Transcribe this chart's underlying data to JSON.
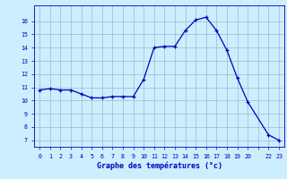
{
  "hours": [
    0,
    1,
    2,
    3,
    4,
    5,
    6,
    7,
    8,
    9,
    10,
    11,
    12,
    13,
    14,
    15,
    16,
    17,
    18,
    19,
    20,
    22,
    23
  ],
  "temps": [
    10.8,
    10.9,
    10.8,
    10.8,
    10.5,
    10.2,
    10.2,
    10.3,
    10.3,
    10.3,
    11.6,
    14.0,
    14.1,
    14.1,
    15.3,
    16.1,
    16.3,
    15.3,
    13.8,
    11.7,
    9.9,
    7.4,
    7.0
  ],
  "xlabel": "Graphe des températures (°c)",
  "ytick_min": 7,
  "ytick_max": 16,
  "ylim_min": 6.5,
  "ylim_max": 17.2,
  "xlim_min": -0.5,
  "xlim_max": 23.5,
  "line_color": "#0000bb",
  "marker_color": "#0000bb",
  "bg_color": "#cceeff",
  "grid_color": "#99bbcc",
  "axis_color": "#0000bb",
  "label_color": "#0000bb"
}
